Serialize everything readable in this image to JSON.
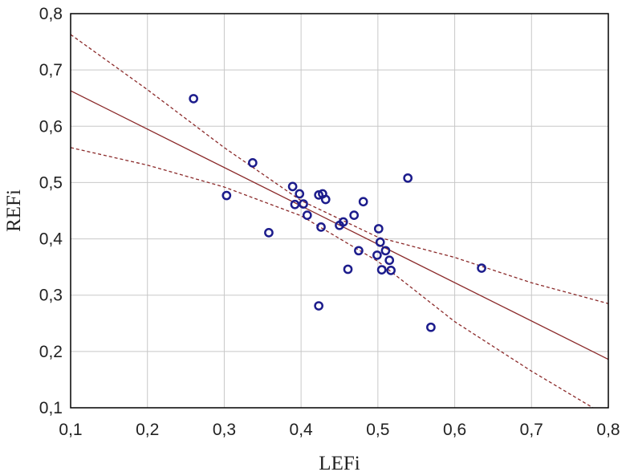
{
  "chart_data": {
    "type": "scatter",
    "title": "",
    "xlabel": "LEFi",
    "ylabel": "REFi",
    "xlim": [
      0.1,
      0.8
    ],
    "ylim": [
      0.1,
      0.8
    ],
    "grid": true,
    "x_ticks": [
      "0,1",
      "0,2",
      "0,3",
      "0,4",
      "0,5",
      "0,6",
      "0,7",
      "0,8"
    ],
    "y_ticks": [
      "0,1",
      "0,2",
      "0,3",
      "0,4",
      "0,5",
      "0,6",
      "0,7",
      "0,8"
    ],
    "points": [
      {
        "x": 0.26,
        "y": 0.649
      },
      {
        "x": 0.303,
        "y": 0.477
      },
      {
        "x": 0.337,
        "y": 0.535
      },
      {
        "x": 0.358,
        "y": 0.411
      },
      {
        "x": 0.389,
        "y": 0.493
      },
      {
        "x": 0.392,
        "y": 0.461
      },
      {
        "x": 0.398,
        "y": 0.48
      },
      {
        "x": 0.403,
        "y": 0.462
      },
      {
        "x": 0.408,
        "y": 0.442
      },
      {
        "x": 0.423,
        "y": 0.478
      },
      {
        "x": 0.426,
        "y": 0.421
      },
      {
        "x": 0.428,
        "y": 0.48
      },
      {
        "x": 0.432,
        "y": 0.47
      },
      {
        "x": 0.423,
        "y": 0.281
      },
      {
        "x": 0.45,
        "y": 0.424
      },
      {
        "x": 0.455,
        "y": 0.43
      },
      {
        "x": 0.461,
        "y": 0.346
      },
      {
        "x": 0.469,
        "y": 0.442
      },
      {
        "x": 0.475,
        "y": 0.379
      },
      {
        "x": 0.481,
        "y": 0.466
      },
      {
        "x": 0.499,
        "y": 0.371
      },
      {
        "x": 0.501,
        "y": 0.418
      },
      {
        "x": 0.503,
        "y": 0.394
      },
      {
        "x": 0.505,
        "y": 0.345
      },
      {
        "x": 0.51,
        "y": 0.379
      },
      {
        "x": 0.515,
        "y": 0.362
      },
      {
        "x": 0.517,
        "y": 0.344
      },
      {
        "x": 0.539,
        "y": 0.508
      },
      {
        "x": 0.569,
        "y": 0.243
      },
      {
        "x": 0.635,
        "y": 0.348
      }
    ],
    "regression_line": [
      {
        "x": 0.1,
        "y": 0.663
      },
      {
        "x": 0.8,
        "y": 0.186
      }
    ],
    "confidence_upper": [
      {
        "x": 0.1,
        "y": 0.763
      },
      {
        "x": 0.2,
        "y": 0.665
      },
      {
        "x": 0.3,
        "y": 0.562
      },
      {
        "x": 0.4,
        "y": 0.468
      },
      {
        "x": 0.5,
        "y": 0.403
      },
      {
        "x": 0.6,
        "y": 0.367
      },
      {
        "x": 0.7,
        "y": 0.322
      },
      {
        "x": 0.8,
        "y": 0.285
      }
    ],
    "confidence_lower": [
      {
        "x": 0.1,
        "y": 0.562
      },
      {
        "x": 0.2,
        "y": 0.531
      },
      {
        "x": 0.3,
        "y": 0.492
      },
      {
        "x": 0.4,
        "y": 0.441
      },
      {
        "x": 0.5,
        "y": 0.36
      },
      {
        "x": 0.6,
        "y": 0.253
      },
      {
        "x": 0.7,
        "y": 0.165
      },
      {
        "x": 0.78,
        "y": 0.1
      }
    ]
  }
}
